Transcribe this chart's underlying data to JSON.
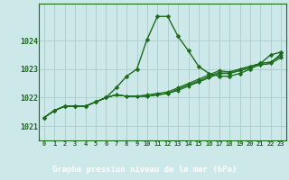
{
  "title": "Graphe pression niveau de la mer (hPa)",
  "bg_color": "#cde8e8",
  "grid_color": "#aacccc",
  "line_color": "#1a6b1a",
  "label_bg": "#2d6b2d",
  "xlim": [
    -0.5,
    23.5
  ],
  "ylim": [
    1020.5,
    1025.3
  ],
  "yticks": [
    1021,
    1022,
    1023,
    1024
  ],
  "xtick_labels": [
    "0",
    "1",
    "2",
    "3",
    "4",
    "5",
    "6",
    "7",
    "8",
    "9",
    "10",
    "11",
    "12",
    "13",
    "14",
    "15",
    "16",
    "17",
    "18",
    "19",
    "20",
    "21",
    "22",
    "23"
  ],
  "series": [
    [
      1021.3,
      1021.55,
      1021.7,
      1021.7,
      1021.7,
      1021.85,
      1022.0,
      1022.35,
      1022.75,
      1023.0,
      1024.05,
      1024.85,
      1024.85,
      1024.15,
      1023.65,
      1023.1,
      1022.85,
      1022.75,
      1022.75,
      1022.85,
      1023.0,
      1023.2,
      1023.5,
      1023.6
    ],
    [
      1021.3,
      1021.55,
      1021.7,
      1021.7,
      1021.7,
      1021.85,
      1022.0,
      1022.1,
      1022.05,
      1022.05,
      1022.05,
      1022.1,
      1022.15,
      1022.25,
      1022.4,
      1022.55,
      1022.7,
      1022.85,
      1022.85,
      1022.95,
      1023.05,
      1023.15,
      1023.2,
      1023.55
    ],
    [
      1021.3,
      1021.55,
      1021.7,
      1021.7,
      1021.7,
      1021.85,
      1022.0,
      1022.1,
      1022.05,
      1022.05,
      1022.05,
      1022.1,
      1022.15,
      1022.3,
      1022.45,
      1022.6,
      1022.75,
      1022.9,
      1022.9,
      1023.0,
      1023.1,
      1023.2,
      1023.25,
      1023.45
    ],
    [
      1021.3,
      1021.55,
      1021.7,
      1021.7,
      1021.7,
      1021.85,
      1022.0,
      1022.1,
      1022.05,
      1022.05,
      1022.1,
      1022.15,
      1022.2,
      1022.35,
      1022.5,
      1022.65,
      1022.8,
      1022.95,
      1022.9,
      1023.0,
      1023.1,
      1023.2,
      1023.25,
      1023.5
    ],
    [
      1021.3,
      1021.55,
      1021.7,
      1021.7,
      1021.7,
      1021.85,
      1022.0,
      1022.1,
      1022.05,
      1022.05,
      1022.05,
      1022.1,
      1022.15,
      1022.3,
      1022.45,
      1022.55,
      1022.7,
      1022.85,
      1022.85,
      1022.95,
      1023.05,
      1023.15,
      1023.2,
      1023.4
    ]
  ]
}
